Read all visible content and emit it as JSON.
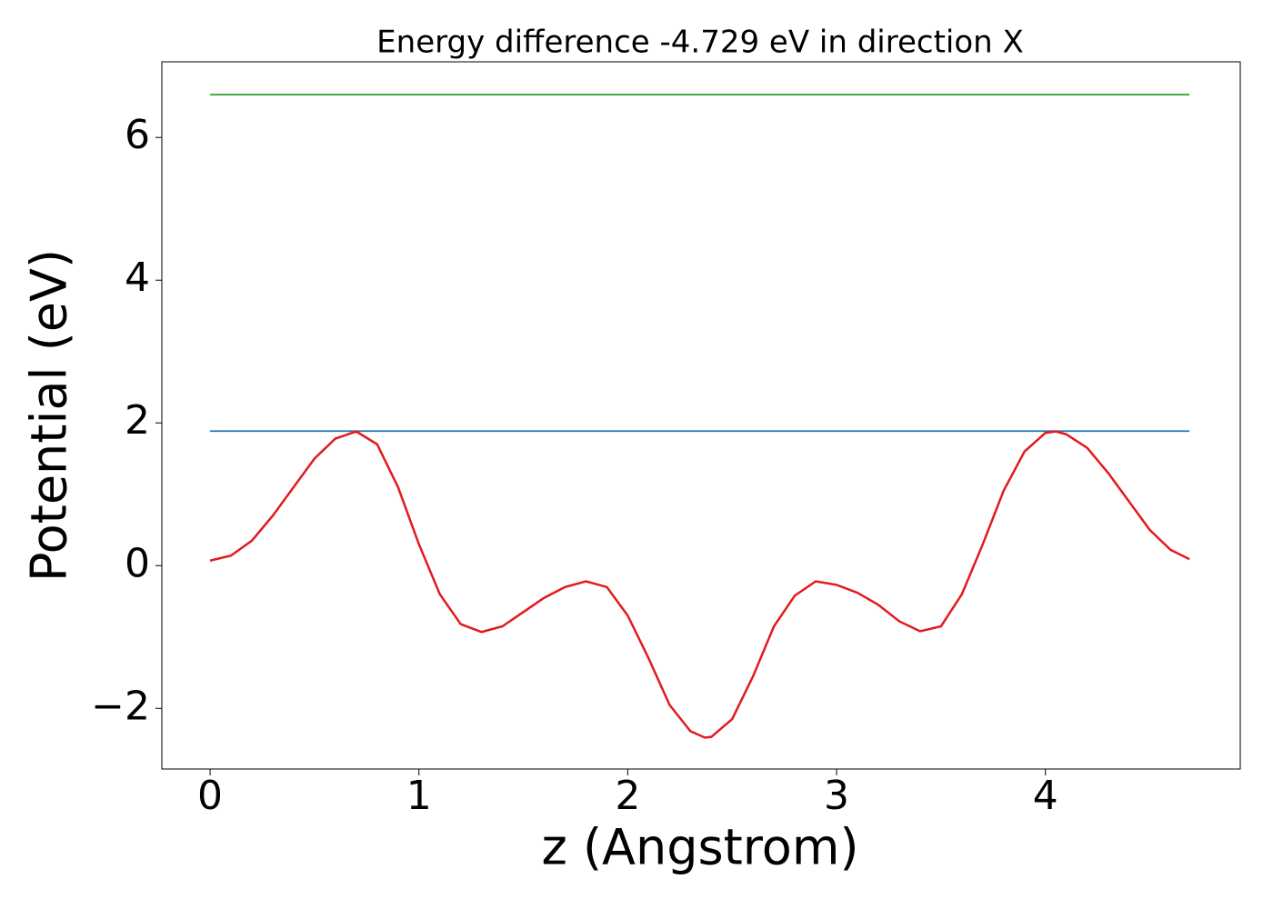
{
  "chart_data": {
    "type": "line",
    "title": "Energy difference -4.729 eV in direction X",
    "xlabel": "z (Angstrom)",
    "ylabel": "Potential (eV)",
    "xlim": [
      -0.231,
      4.933
    ],
    "ylim": [
      -2.85,
      7.06
    ],
    "xticks": [
      0,
      1,
      2,
      3,
      4
    ],
    "yticks": [
      {
        "value": -2,
        "label": "−2"
      },
      0,
      2,
      4,
      6
    ],
    "grid": false,
    "series": [
      {
        "color": "#1f77b4",
        "x": [
          0,
          4.69
        ],
        "values": [
          1.885,
          1.885
        ]
      },
      {
        "color": "#2ca02c",
        "x": [
          0,
          4.69
        ],
        "values": [
          6.6,
          6.6
        ]
      },
      {
        "color": "#e31a1c",
        "x": [
          0,
          0.1,
          0.2,
          0.3,
          0.4,
          0.5,
          0.6,
          0.7,
          0.8,
          0.9,
          1.0,
          1.1,
          1.2,
          1.3,
          1.4,
          1.5,
          1.6,
          1.7,
          1.8,
          1.9,
          2.0,
          2.1,
          2.2,
          2.3,
          2.37,
          2.4,
          2.5,
          2.6,
          2.7,
          2.8,
          2.9,
          3.0,
          3.1,
          3.2,
          3.3,
          3.4,
          3.5,
          3.6,
          3.7,
          3.8,
          3.9,
          4.0,
          4.05,
          4.1,
          4.2,
          4.3,
          4.4,
          4.5,
          4.6,
          4.69
        ],
        "values": [
          0.07,
          0.14,
          0.35,
          0.7,
          1.1,
          1.5,
          1.78,
          1.88,
          1.7,
          1.1,
          0.3,
          -0.4,
          -0.82,
          -0.93,
          -0.85,
          -0.65,
          -0.45,
          -0.3,
          -0.22,
          -0.3,
          -0.7,
          -1.3,
          -1.95,
          -2.32,
          -2.41,
          -2.4,
          -2.15,
          -1.55,
          -0.85,
          -0.42,
          -0.22,
          -0.27,
          -0.38,
          -0.55,
          -0.78,
          -0.92,
          -0.85,
          -0.4,
          0.3,
          1.05,
          1.6,
          1.86,
          1.88,
          1.84,
          1.65,
          1.3,
          0.9,
          0.5,
          0.22,
          0.09
        ]
      }
    ]
  }
}
